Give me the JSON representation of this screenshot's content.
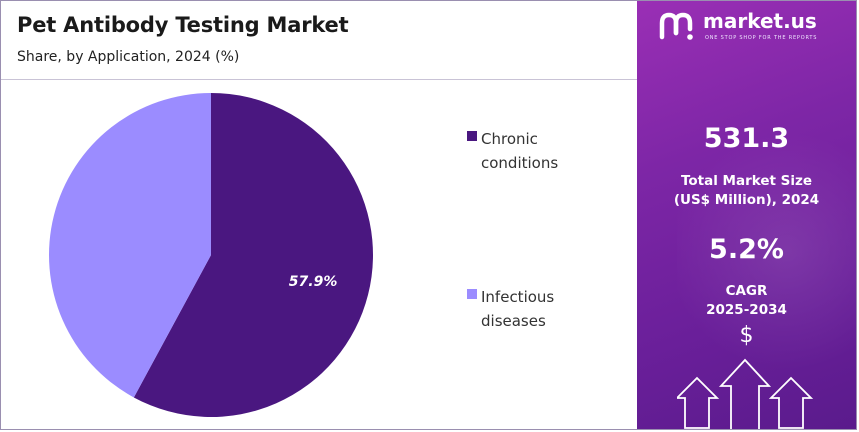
{
  "header": {
    "title": "Pet Antibody Testing Market",
    "subtitle": "Share, by Application, 2024 (%)"
  },
  "chart_data": {
    "type": "pie",
    "title": "Pet Antibody Testing Market",
    "subtitle": "Share, by Application, 2024 (%)",
    "categories": [
      "Chronic conditions",
      "Infectious diseases"
    ],
    "values": [
      57.9,
      42.1
    ],
    "data_labels": [
      "57.9%",
      ""
    ],
    "colors": [
      "#4a1780",
      "#9b8cff"
    ],
    "legend_position": "right"
  },
  "legend": [
    {
      "label_line1": "Chronic",
      "label_line2": "conditions",
      "color": "#4a1780"
    },
    {
      "label_line1": "Infectious",
      "label_line2": "diseases",
      "color": "#9b8cff"
    }
  ],
  "panel": {
    "brand_name": "market.us",
    "brand_tagline": "ONE STOP SHOP FOR THE REPORTS",
    "market_size_value": "531.3",
    "market_size_label_line1": "Total Market Size",
    "market_size_label_line2": "(US$ Million), 2024",
    "cagr_value": "5.2%",
    "cagr_label_line1": "CAGR",
    "cagr_label_line2": "2025-2034",
    "currency_symbol": "$",
    "icons": [
      "market-us-logo-icon",
      "up-arrow-icon"
    ]
  }
}
